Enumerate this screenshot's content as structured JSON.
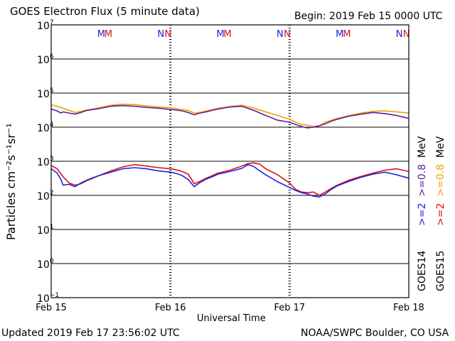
{
  "header": {
    "title": "GOES Electron Flux (5 minute data)",
    "begin": "Begin: 2019 Feb 15 0000 UTC"
  },
  "footer": {
    "updated": "Updated 2019 Feb 17 23:56:02 UTC",
    "credit": "NOAA/SWPC Boulder, CO USA"
  },
  "legend": {
    "row1": [
      {
        "text": ">=2",
        "color": "#2222dd"
      },
      {
        "text": ">=0.8",
        "color": "#5a1e9e"
      },
      {
        "text": "MeV",
        "color": "#000000"
      }
    ],
    "row2": [
      {
        "text": ">=2",
        "color": "#dd1111"
      },
      {
        "text": ">=0.8",
        "color": "#f0a000"
      },
      {
        "text": "MeV",
        "color": "#000000"
      }
    ],
    "sat1": "GOES14",
    "sat2": "GOES15"
  },
  "markers": [
    {
      "text": "M",
      "color": "#2222dd",
      "x_days": 0.42
    },
    {
      "text": "M",
      "color": "#dd1111",
      "x_days": 0.48
    },
    {
      "text": "N",
      "color": "#2222dd",
      "x_days": 0.92
    },
    {
      "text": "N",
      "color": "#dd1111",
      "x_days": 0.98
    },
    {
      "text": "M",
      "color": "#2222dd",
      "x_days": 1.42
    },
    {
      "text": "M",
      "color": "#dd1111",
      "x_days": 1.48
    },
    {
      "text": "N",
      "color": "#2222dd",
      "x_days": 1.92
    },
    {
      "text": "N",
      "color": "#dd1111",
      "x_days": 1.98
    },
    {
      "text": "M",
      "color": "#2222dd",
      "x_days": 2.42
    },
    {
      "text": "M",
      "color": "#dd1111",
      "x_days": 2.48
    },
    {
      "text": "N",
      "color": "#2222dd",
      "x_days": 2.92
    },
    {
      "text": "N",
      "color": "#dd1111",
      "x_days": 2.98
    }
  ],
  "chart_data": {
    "type": "line",
    "xlabel": "Universal Time",
    "ylabel": "Particles cm⁻²s⁻¹sr⁻¹",
    "x_unit": "days since 2019 Feb 15 00:00 UTC",
    "xlim": [
      0,
      3
    ],
    "x_ticks": [
      {
        "x": 0,
        "label": "Feb 15"
      },
      {
        "x": 1,
        "label": "Feb 16"
      },
      {
        "x": 2,
        "label": "Feb 17"
      },
      {
        "x": 3,
        "label": "Feb 18"
      }
    ],
    "y_scale": "log",
    "ylim": [
      0.1,
      10000000
    ],
    "y_ticks": [
      {
        "exp": 7,
        "label": "10",
        "sup": "7"
      },
      {
        "exp": 6,
        "label": "10",
        "sup": "6"
      },
      {
        "exp": 5,
        "label": "10",
        "sup": "5"
      },
      {
        "exp": 4,
        "label": "10",
        "sup": "4"
      },
      {
        "exp": 3,
        "label": "10",
        "sup": "3"
      },
      {
        "exp": 2,
        "label": "10",
        "sup": "2"
      },
      {
        "exp": 1,
        "label": "10",
        "sup": "1"
      },
      {
        "exp": 0,
        "label": "10",
        "sup": "0"
      },
      {
        "exp": -1,
        "label": "10",
        "sup": "−1"
      }
    ],
    "threshold": 1000,
    "series": [
      {
        "name": "GOES15 >=0.8 MeV",
        "color": "#f0a000",
        "x": [
          0,
          0.05,
          0.1,
          0.15,
          0.2,
          0.25,
          0.3,
          0.35,
          0.4,
          0.5,
          0.6,
          0.7,
          0.8,
          0.9,
          1.0,
          1.05,
          1.1,
          1.15,
          1.2,
          1.25,
          1.3,
          1.35,
          1.4,
          1.5,
          1.6,
          1.7,
          1.8,
          1.9,
          2.0,
          2.05,
          2.1,
          2.15,
          2.2,
          2.25,
          2.3,
          2.35,
          2.4,
          2.5,
          2.6,
          2.7,
          2.8,
          2.9,
          3.0
        ],
        "y": [
          45000,
          41000,
          36000,
          31000,
          27000,
          29000,
          32000,
          34000,
          37000,
          44000,
          47000,
          46000,
          42000,
          39000,
          37000,
          35000,
          33000,
          31000,
          26000,
          27000,
          30000,
          33000,
          36000,
          40000,
          44000,
          36000,
          28000,
          22000,
          17000,
          14000,
          12000,
          11500,
          10500,
          11000,
          14000,
          16000,
          18000,
          22000,
          26000,
          29000,
          30000,
          28000,
          26000
        ]
      },
      {
        "name": "GOES14 >=0.8 MeV",
        "color": "#5a1e9e",
        "x": [
          0,
          0.05,
          0.08,
          0.1,
          0.15,
          0.2,
          0.25,
          0.3,
          0.35,
          0.4,
          0.5,
          0.6,
          0.7,
          0.8,
          0.9,
          1.0,
          1.05,
          1.1,
          1.15,
          1.2,
          1.25,
          1.3,
          1.35,
          1.4,
          1.5,
          1.6,
          1.7,
          1.8,
          1.9,
          2.0,
          2.05,
          2.1,
          2.15,
          2.2,
          2.25,
          2.3,
          2.35,
          2.4,
          2.5,
          2.6,
          2.7,
          2.8,
          2.9,
          3.0
        ],
        "y": [
          34000,
          30000,
          26000,
          28000,
          26000,
          24000,
          27000,
          31000,
          33000,
          35000,
          41000,
          43000,
          41000,
          38000,
          36000,
          33000,
          32000,
          30000,
          27000,
          23000,
          26000,
          28000,
          31000,
          34000,
          39000,
          41000,
          31000,
          22000,
          16000,
          14000,
          12000,
          10500,
          9500,
          10000,
          11000,
          12500,
          15000,
          17000,
          21000,
          24000,
          27000,
          25000,
          22000,
          18000
        ]
      },
      {
        "name": "GOES15 >=2 MeV",
        "color": "#dd1111",
        "x": [
          0,
          0.05,
          0.1,
          0.15,
          0.2,
          0.25,
          0.3,
          0.35,
          0.4,
          0.5,
          0.6,
          0.7,
          0.8,
          0.9,
          1.0,
          1.05,
          1.1,
          1.15,
          1.2,
          1.25,
          1.3,
          1.35,
          1.4,
          1.5,
          1.6,
          1.65,
          1.7,
          1.75,
          1.8,
          1.9,
          2.0,
          2.05,
          2.1,
          2.15,
          2.2,
          2.25,
          2.3,
          2.35,
          2.4,
          2.5,
          2.6,
          2.7,
          2.8,
          2.9,
          3.0
        ],
        "y": [
          750,
          600,
          350,
          230,
          200,
          220,
          270,
          320,
          380,
          520,
          680,
          800,
          720,
          650,
          600,
          560,
          500,
          420,
          220,
          260,
          320,
          380,
          450,
          550,
          720,
          850,
          900,
          820,
          600,
          400,
          230,
          150,
          125,
          120,
          125,
          100,
          125,
          160,
          200,
          280,
          360,
          450,
          550,
          600,
          500
        ]
      },
      {
        "name": "GOES14 >=2 MeV",
        "color": "#2222dd",
        "x": [
          0,
          0.05,
          0.08,
          0.1,
          0.15,
          0.2,
          0.25,
          0.3,
          0.35,
          0.4,
          0.5,
          0.6,
          0.7,
          0.8,
          0.9,
          1.0,
          1.05,
          1.1,
          1.15,
          1.2,
          1.25,
          1.3,
          1.35,
          1.4,
          1.5,
          1.6,
          1.65,
          1.7,
          1.75,
          1.8,
          1.9,
          2.0,
          2.05,
          2.1,
          2.15,
          2.2,
          2.25,
          2.3,
          2.35,
          2.4,
          2.5,
          2.6,
          2.7,
          2.8,
          2.9,
          3.0
        ],
        "y": [
          600,
          450,
          300,
          200,
          210,
          180,
          230,
          280,
          330,
          380,
          480,
          600,
          650,
          600,
          520,
          480,
          440,
          380,
          290,
          180,
          240,
          300,
          350,
          420,
          500,
          620,
          800,
          700,
          520,
          400,
          250,
          170,
          140,
          120,
          110,
          95,
          90,
          110,
          150,
          190,
          260,
          340,
          420,
          480,
          400,
          320
        ]
      }
    ]
  }
}
